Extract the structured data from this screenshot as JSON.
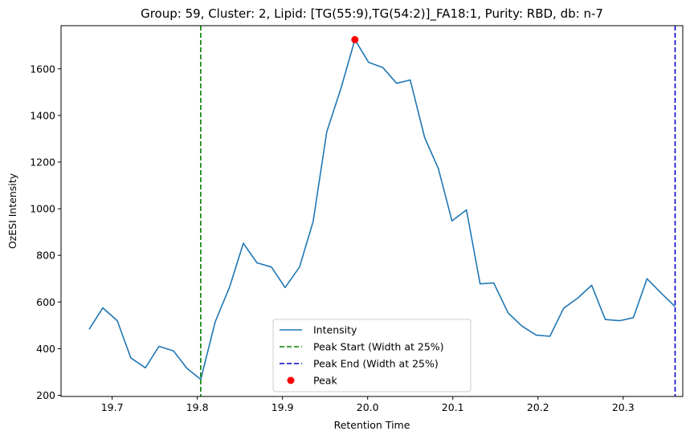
{
  "chart_data": {
    "type": "line",
    "title": "Group: 59, Cluster: 2, Lipid: [TG(55:9),TG(54:2)]_FA18:1, Purity: RBD, db: n-7",
    "xlabel": "Retention Time",
    "ylabel": "OzESI Intensity",
    "xlim": [
      19.64,
      20.37
    ],
    "ylim": [
      195,
      1785
    ],
    "xticks": [
      19.7,
      19.8,
      19.9,
      20.0,
      20.1,
      20.2,
      20.3
    ],
    "yticks": [
      200,
      400,
      600,
      800,
      1000,
      1200,
      1400,
      1600
    ],
    "grid": false,
    "legend_position": "lower-center",
    "series": [
      {
        "name": "Intensity",
        "color": "#1f77b4",
        "x": [
          19.673,
          19.689,
          19.706,
          19.722,
          19.739,
          19.755,
          19.772,
          19.788,
          19.804,
          19.821,
          19.838,
          19.854,
          19.87,
          19.887,
          19.903,
          19.92,
          19.936,
          19.952,
          19.969,
          19.985,
          20.001,
          20.018,
          20.034,
          20.05,
          20.067,
          20.083,
          20.099,
          20.116,
          20.132,
          20.148,
          20.165,
          20.181,
          20.198,
          20.214,
          20.23,
          20.247,
          20.263,
          20.279,
          20.296,
          20.312,
          20.328,
          20.345,
          20.361
        ],
        "y": [
          483,
          575,
          520,
          360,
          318,
          410,
          390,
          315,
          268,
          515,
          665,
          852,
          768,
          750,
          662,
          750,
          945,
          1330,
          1520,
          1725,
          1628,
          1605,
          1538,
          1552,
          1305,
          1172,
          948,
          995,
          678,
          682,
          553,
          497,
          458,
          453,
          573,
          618,
          672,
          525,
          520,
          533,
          700,
          637,
          580
        ]
      }
    ],
    "vlines": [
      {
        "name": "Peak Start (Width at 25%)",
        "x": 19.804,
        "color": "#008000",
        "style": "dashed"
      },
      {
        "name": "Peak End (Width at 25%)",
        "x": 20.361,
        "color": "#0000cc",
        "style": "dashed"
      }
    ],
    "peak": {
      "name": "Peak",
      "x": 19.985,
      "y": 1725,
      "color": "#ff0000"
    }
  }
}
